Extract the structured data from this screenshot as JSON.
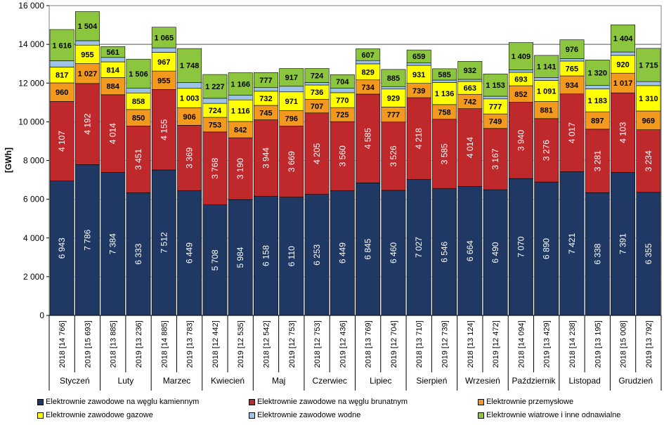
{
  "chart_data": {
    "type": "bar",
    "stacked": true,
    "ylabel": "[GWh]",
    "ylim": [
      0,
      16000
    ],
    "yticks": [
      "0",
      "2 000",
      "4 000",
      "6 000",
      "8 000",
      "10 000",
      "12 000",
      "14 000",
      "16 000"
    ],
    "ytick_values": [
      0,
      2000,
      4000,
      6000,
      8000,
      10000,
      12000,
      14000,
      16000
    ],
    "grid": true,
    "reference_line": 14000,
    "months": [
      "Styczeń",
      "Luty",
      "Marzec",
      "Kwiecień",
      "Maj",
      "Czerwiec",
      "Lipiec",
      "Sierpień",
      "Wrzesień",
      "Październik",
      "Listopad",
      "Grudzień"
    ],
    "categories": [
      "2018 [14 766]",
      "2019 [15 693]",
      "2018 [13 885]",
      "2019 [13 236]",
      "2018 [14 885]",
      "2019 [13 783]",
      "2018 [12 442]",
      "2019 [12 535]",
      "2018 [12 542]",
      "2019 [12 753]",
      "2018 [12 753]",
      "2019 [12 436]",
      "2018 [13 769]",
      "2019 [12 704]",
      "2018 [13 710]",
      "2019 [12 739]",
      "2018 [13 124]",
      "2019 [12 472]",
      "2018 [14 094]",
      "2019 [13 429]",
      "2018 [14 238]",
      "2019 [13 195]",
      "2018 [15 008]",
      "2019 [13 792]"
    ],
    "totals": [
      14766,
      15693,
      13885,
      13236,
      14885,
      13783,
      12442,
      12535,
      12542,
      12753,
      12753,
      12436,
      13769,
      12704,
      13710,
      12739,
      13124,
      12472,
      14094,
      13429,
      14238,
      13195,
      15008,
      13792
    ],
    "series": [
      {
        "name": "Elektrownie zawodowe na węglu kamiennym",
        "color": "#1f3864",
        "labelColor": "#ffffff",
        "values": [
          6943,
          7786,
          7384,
          6333,
          7512,
          6449,
          5708,
          5984,
          6158,
          6110,
          6253,
          6449,
          6845,
          6460,
          7027,
          6546,
          6664,
          6490,
          7070,
          6890,
          7421,
          6338,
          7391,
          6355
        ],
        "labels": [
          "6 943",
          "7 786",
          "7 384",
          "6 333",
          "7 512",
          "6 449",
          "5 708",
          "5 984",
          "6 158",
          "6 110",
          "6 253",
          "6 449",
          "6 845",
          "6 460",
          "7 027",
          "6 546",
          "6 664",
          "6 490",
          "7 070",
          "6 890",
          "7 421",
          "6 338",
          "7 391",
          "6 355"
        ]
      },
      {
        "name": "Elektrownie zawodowe na węglu brunatnym",
        "color": "#c0292c",
        "labelColor": "#ffffff",
        "values": [
          4107,
          4192,
          4014,
          3451,
          4155,
          3369,
          3768,
          3190,
          3944,
          3669,
          4205,
          3560,
          4585,
          3526,
          4218,
          3585,
          4014,
          3167,
          3940,
          3276,
          4017,
          3281,
          4103,
          3234
        ],
        "labels": [
          "4 107",
          "4 192",
          "4 014",
          "3 451",
          "4 155",
          "3 369",
          "3 768",
          "3 190",
          "3 944",
          "3 669",
          "4 205",
          "3 560",
          "4 585",
          "3 526",
          "4 218",
          "3 585",
          "4 014",
          "3 167",
          "3 940",
          "3 276",
          "4 017",
          "3 281",
          "4 103",
          "3 234"
        ]
      },
      {
        "name": "Elektrownie przemysłowe",
        "color": "#f39a1e",
        "labelColor": "#000000",
        "values": [
          960,
          1027,
          884,
          850,
          955,
          906,
          753,
          842,
          745,
          796,
          707,
          725,
          734,
          777,
          739,
          758,
          742,
          749,
          852,
          881,
          934,
          897,
          1017,
          969
        ],
        "labels": [
          "960",
          "1 027",
          "884",
          "850",
          "955",
          "906",
          "753",
          "842",
          "745",
          "796",
          "707",
          "725",
          "734",
          "777",
          "739",
          "758",
          "742",
          "749",
          "852",
          "881",
          "934",
          "897",
          "1 017",
          "969"
        ]
      },
      {
        "name": "Elektrownie zawodowe gazowe",
        "color": "#ffff00",
        "labelColor": "#000000",
        "values": [
          817,
          955,
          814,
          858,
          967,
          1003,
          724,
          1116,
          732,
          971,
          736,
          770,
          829,
          929,
          931,
          1136,
          663,
          777,
          693,
          1091,
          765,
          1183,
          920,
          1310
        ],
        "labels": [
          "817",
          "955",
          "814",
          "858",
          "967",
          "1 003",
          "724",
          "1 116",
          "732",
          "971",
          "736",
          "770",
          "829",
          "929",
          "931",
          "1 136",
          "663",
          "777",
          "693",
          "1 091",
          "765",
          "1 183",
          "920",
          "1 310"
        ]
      },
      {
        "name": "Elektrownie zawodowe wodne",
        "color": "#9dc3e6",
        "labelColor": "#000000",
        "values": [
          323,
          229,
          228,
          238,
          231,
          308,
          262,
          237,
          186,
          290,
          128,
          228,
          169,
          127,
          136,
          129,
          109,
          137,
          130,
          150,
          125,
          176,
          173,
          209
        ],
        "labels": []
      },
      {
        "name": "Elektrownie wiatrowe i inne odnawialne",
        "color": "#8cc63f",
        "labelColor": "#000000",
        "values": [
          1616,
          1504,
          561,
          1506,
          1065,
          1748,
          1227,
          1166,
          777,
          917,
          724,
          704,
          607,
          885,
          659,
          585,
          932,
          1153,
          1409,
          1141,
          976,
          1320,
          1404,
          1715
        ],
        "labels": [
          "1 616",
          "1 504",
          "561",
          "1 506",
          "1 065",
          "1 748",
          "1 227",
          "1 166",
          "777",
          "917",
          "724",
          "704",
          "607",
          "885",
          "659",
          "585",
          "932",
          "1 153",
          "1 409",
          "1 141",
          "976",
          "1 320",
          "1 404",
          "1 715"
        ]
      }
    ]
  }
}
